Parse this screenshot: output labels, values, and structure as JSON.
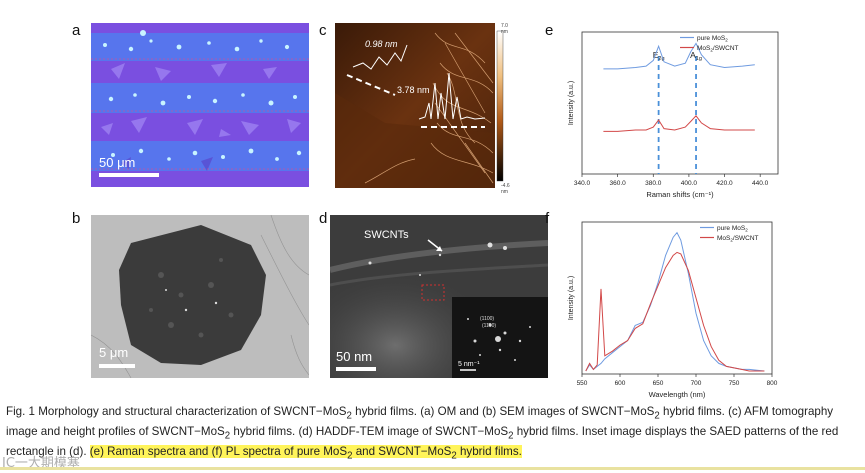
{
  "panels": {
    "a": {
      "letter": "a",
      "scale": "50 μm"
    },
    "b": {
      "letter": "b",
      "scale": "5 μm"
    },
    "c": {
      "letter": "c",
      "label1": "0.98 nm",
      "label2": "3.78 nm",
      "cbar_top": "7.0 nm",
      "cbar_bottom": "-4.6 nm"
    },
    "d": {
      "letter": "d",
      "label": "SWCNTs",
      "scale": "50 nm",
      "inset_label1": "(1100)",
      "inset_label2": "(11̄00)",
      "inset_scale": "5 nm⁻¹"
    },
    "e": {
      "letter": "e"
    },
    "f": {
      "letter": "f"
    }
  },
  "caption": {
    "part1": "Fig. 1   Morphology and structural characterization of SWCNT−MoS",
    "part2": " hybrid films. (a) OM and (b) SEM images of SWCNT−MoS",
    "part3": " hybrid films. (c) AFM tomography image and height profiles of SWCNT−MoS",
    "part4": " hybrid films. (d) HADDF-TEM image of SWCNT−MoS",
    "part5": " hybrid films. Inset image displays the SAED patterns of the red rectangle in (d). ",
    "hl1": "(e) Raman spectra and (f) PL spectra of pure MoS",
    "hl2": " and SWCNT−MoS",
    "hl3": " hybrid films.",
    "sub": "2"
  },
  "watermark": "IC一大期模塞",
  "chart_data": [
    {
      "type": "line",
      "panel": "e",
      "xlabel": "Raman shifts (cm⁻¹)",
      "ylabel": "Intensity (a.u.)",
      "xlim": [
        340,
        450
      ],
      "x_ticks": [
        "340.0",
        "360.0",
        "380.0",
        "400.0",
        "420.0",
        "440.0"
      ],
      "peak_labels": [
        "E2g",
        "A1g"
      ],
      "peak_positions": [
        383,
        404
      ],
      "legend": [
        "pure MoS2",
        "MoS2/SWCNT"
      ],
      "series": [
        {
          "name": "pure MoS2",
          "color": "#6f9be0",
          "x": [
            352,
            360,
            370,
            376,
            380,
            383,
            386,
            392,
            398,
            401,
            404,
            407,
            412,
            420,
            430,
            437
          ],
          "y": [
            0.74,
            0.74,
            0.75,
            0.76,
            0.8,
            0.9,
            0.79,
            0.76,
            0.78,
            0.86,
            0.92,
            0.84,
            0.77,
            0.75,
            0.76,
            0.77
          ]
        },
        {
          "name": "MoS2/SWCNT",
          "color": "#d24848",
          "x": [
            352,
            360,
            370,
            376,
            380,
            383,
            386,
            392,
            398,
            401,
            404,
            407,
            412,
            420,
            430,
            437
          ],
          "y": [
            0.3,
            0.3,
            0.31,
            0.31,
            0.33,
            0.38,
            0.32,
            0.31,
            0.33,
            0.37,
            0.41,
            0.36,
            0.32,
            0.31,
            0.31,
            0.31
          ]
        }
      ]
    },
    {
      "type": "line",
      "panel": "f",
      "xlabel": "Wavelength (nm)",
      "ylabel": "Intensity (a.u.)",
      "xlim": [
        550,
        800
      ],
      "x_ticks": [
        "550",
        "600",
        "650",
        "700",
        "750",
        "800"
      ],
      "legend": [
        "pure MoS2",
        "MoS2/SWCNT"
      ],
      "series": [
        {
          "name": "pure MoS2",
          "color": "#6f9be0",
          "x": [
            555,
            560,
            565,
            570,
            575,
            580,
            590,
            600,
            610,
            620,
            630,
            640,
            650,
            660,
            670,
            675,
            680,
            690,
            700,
            710,
            720,
            730,
            740,
            750,
            760,
            770,
            790
          ],
          "y": [
            0.02,
            0.06,
            0.03,
            0.05,
            0.07,
            0.1,
            0.14,
            0.18,
            0.22,
            0.32,
            0.34,
            0.45,
            0.6,
            0.78,
            0.9,
            0.93,
            0.88,
            0.66,
            0.4,
            0.22,
            0.12,
            0.07,
            0.05,
            0.04,
            0.03,
            0.03,
            0.02
          ]
        },
        {
          "name": "MoS2/SWCNT",
          "color": "#d24848",
          "x": [
            555,
            560,
            565,
            570,
            575,
            580,
            590,
            600,
            610,
            620,
            630,
            640,
            650,
            660,
            670,
            675,
            680,
            690,
            700,
            710,
            720,
            730,
            740,
            750,
            760,
            770,
            790
          ],
          "y": [
            0.02,
            0.07,
            0.03,
            0.06,
            0.56,
            0.12,
            0.15,
            0.19,
            0.22,
            0.3,
            0.33,
            0.46,
            0.58,
            0.7,
            0.78,
            0.8,
            0.79,
            0.68,
            0.5,
            0.32,
            0.18,
            0.09,
            0.05,
            0.04,
            0.03,
            0.02,
            0.02
          ]
        }
      ]
    }
  ]
}
